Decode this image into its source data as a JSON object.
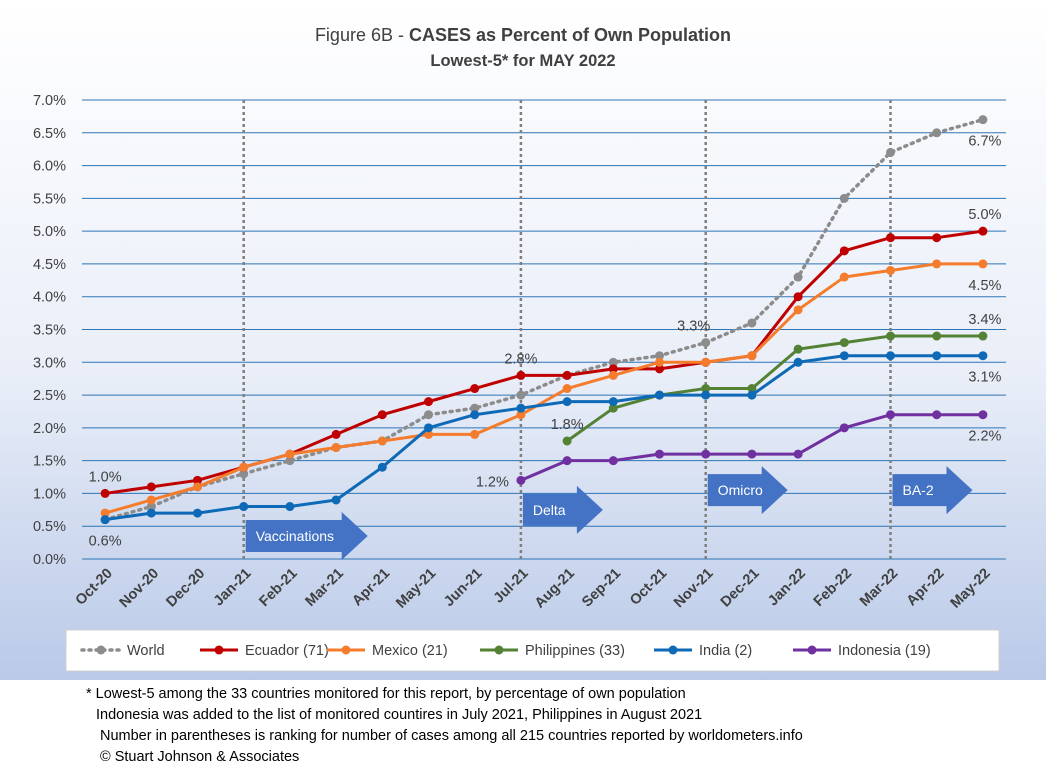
{
  "chart_data": {
    "type": "line",
    "title_prefix": "Figure 6B - ",
    "title_bold": "CASES as Percent of Own Population",
    "subtitle": "Lowest-5* for MAY 2022",
    "categories": [
      "Oct-20",
      "Nov-20",
      "Dec-20",
      "Jan-21",
      "Feb-21",
      "Mar-21",
      "Apr-21",
      "May-21",
      "Jun-21",
      "Jul-21",
      "Aug-21",
      "Sep-21",
      "Oct-21",
      "Nov-21",
      "Dec-21",
      "Jan-22",
      "Feb-22",
      "Mar-22",
      "Apr-22",
      "May-22"
    ],
    "y_ticks": [
      "0.0%",
      "0.5%",
      "1.0%",
      "1.5%",
      "2.0%",
      "2.5%",
      "3.0%",
      "3.5%",
      "4.0%",
      "4.5%",
      "5.0%",
      "5.5%",
      "6.0%",
      "6.5%",
      "7.0%"
    ],
    "ylim": [
      0,
      7.0
    ],
    "grid": true,
    "legend_position": "bottom",
    "series": [
      {
        "name": "World",
        "color": "#8c8c8c",
        "dashed": true,
        "values": [
          0.6,
          0.8,
          1.1,
          1.3,
          1.5,
          1.7,
          1.8,
          2.2,
          2.3,
          2.5,
          2.8,
          3.0,
          3.1,
          3.3,
          3.6,
          4.3,
          5.5,
          6.2,
          6.5,
          6.7
        ]
      },
      {
        "name": "Ecuador (71)",
        "color": "#c00000",
        "values": [
          1.0,
          1.1,
          1.2,
          1.4,
          1.6,
          1.9,
          2.2,
          2.4,
          2.6,
          2.8,
          2.8,
          2.9,
          2.9,
          3.0,
          3.1,
          4.0,
          4.7,
          4.9,
          4.9,
          5.0
        ]
      },
      {
        "name": "Mexico (21)",
        "color": "#f47c2c",
        "values": [
          0.7,
          0.9,
          1.1,
          1.4,
          1.6,
          1.7,
          1.8,
          1.9,
          1.9,
          2.2,
          2.6,
          2.8,
          3.0,
          3.0,
          3.1,
          3.8,
          4.3,
          4.4,
          4.5,
          4.5
        ]
      },
      {
        "name": "Philippines (33)",
        "color": "#548235",
        "values": [
          null,
          null,
          null,
          null,
          null,
          null,
          null,
          null,
          null,
          null,
          1.8,
          2.3,
          2.5,
          2.6,
          2.6,
          3.2,
          3.3,
          3.4,
          3.4,
          3.4
        ]
      },
      {
        "name": "India (2)",
        "color": "#0e6ab6",
        "values": [
          0.6,
          0.7,
          0.7,
          0.8,
          0.8,
          0.9,
          1.4,
          2.0,
          2.2,
          2.3,
          2.4,
          2.4,
          2.5,
          2.5,
          2.5,
          3.0,
          3.1,
          3.1,
          3.1,
          3.1
        ]
      },
      {
        "name": "Indonesia (19)",
        "color": "#7030a0",
        "values": [
          null,
          null,
          null,
          null,
          null,
          null,
          null,
          null,
          null,
          1.2,
          1.5,
          1.5,
          1.6,
          1.6,
          1.6,
          1.6,
          2.0,
          2.2,
          2.2,
          2.2
        ]
      }
    ],
    "data_labels": [
      {
        "text": "1.0%",
        "series": 1,
        "index": 0,
        "pos": "above"
      },
      {
        "text": "0.6%",
        "series": 4,
        "index": 0,
        "pos": "below"
      },
      {
        "text": "2.8%",
        "series": 1,
        "index": 9,
        "pos": "above"
      },
      {
        "text": "1.2%",
        "series": 5,
        "index": 9,
        "pos": "left"
      },
      {
        "text": "1.8%",
        "series": 3,
        "index": 10,
        "pos": "above"
      },
      {
        "text": "3.3%",
        "series": 0,
        "index": 13,
        "pos": "above-left"
      },
      {
        "text": "6.7%",
        "series": 0,
        "index": 19,
        "pos": "below"
      },
      {
        "text": "5.0%",
        "series": 1,
        "index": 19,
        "pos": "above"
      },
      {
        "text": "4.5%",
        "series": 2,
        "index": 19,
        "pos": "below"
      },
      {
        "text": "3.4%",
        "series": 3,
        "index": 19,
        "pos": "above"
      },
      {
        "text": "3.1%",
        "series": 4,
        "index": 19,
        "pos": "below"
      },
      {
        "text": "2.2%",
        "series": 5,
        "index": 19,
        "pos": "below"
      }
    ],
    "annotations": [
      {
        "text": "Vaccinations",
        "index": 3,
        "y": 0.35
      },
      {
        "text": "Delta",
        "index": 9,
        "y": 0.75
      },
      {
        "text": "Omicro",
        "index": 13,
        "y": 1.05
      },
      {
        "text": "BA-2",
        "index": 17,
        "y": 1.05
      }
    ],
    "event_line_indices": [
      3,
      9,
      13,
      17
    ]
  },
  "footnotes": {
    "line1": "* Lowest-5 among the 33 countries monitored for this report, by percentage of own population",
    "line2": "Indonesia was added to the list of monitored countires in July 2021, Philippines in August 2021",
    "line3": "Number in parentheses is ranking for number of cases among all 215 countries reported by worldometers.info",
    "line4": "© Stuart Johnson & Associates"
  },
  "colors": {
    "arrow": "#4472c4",
    "grid": "#2e75b6",
    "event_line": "#7f7f7f"
  }
}
